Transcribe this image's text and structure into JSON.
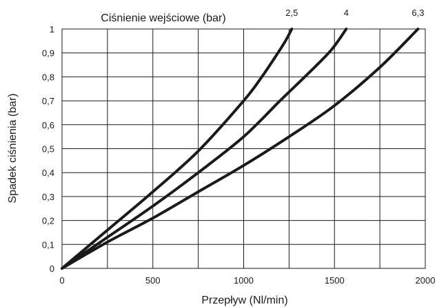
{
  "chart_data": {
    "type": "line",
    "title": "Ciśnienie wejściowe (bar)",
    "xlabel": "Przepływ (Nl/min)",
    "ylabel": "Spadek ciśnienia (bar)",
    "xlim": [
      0,
      2000
    ],
    "ylim": [
      0,
      1
    ],
    "xticks": [
      0,
      250,
      500,
      750,
      1000,
      1250,
      1500,
      1750,
      2000
    ],
    "yticks": [
      0,
      0.1,
      0.2,
      0.3,
      0.4,
      0.5,
      0.6,
      0.7,
      0.8,
      0.9,
      1
    ],
    "xtick_labels": [
      "0",
      "",
      "500",
      "",
      "1000",
      "",
      "1500",
      "",
      "2000"
    ],
    "ytick_labels": [
      "0",
      "0,1",
      "0,2",
      "0,3",
      "0,4",
      "0,5",
      "0,6",
      "0,7",
      "0,8",
      "0,9",
      "1"
    ],
    "grid": true,
    "series": [
      {
        "name": "2,5",
        "x": [
          0,
          250,
          500,
          750,
          1000,
          1100,
          1180,
          1230,
          1265
        ],
        "y": [
          0,
          0.16,
          0.32,
          0.49,
          0.7,
          0.8,
          0.89,
          0.95,
          1.0
        ]
      },
      {
        "name": "4",
        "x": [
          0,
          250,
          500,
          750,
          1000,
          1200,
          1350,
          1480,
          1565
        ],
        "y": [
          0,
          0.13,
          0.26,
          0.4,
          0.55,
          0.7,
          0.81,
          0.91,
          1.0
        ]
      },
      {
        "name": "6,3",
        "x": [
          0,
          250,
          500,
          750,
          1000,
          1250,
          1500,
          1750,
          1960
        ],
        "y": [
          0,
          0.11,
          0.21,
          0.32,
          0.43,
          0.55,
          0.68,
          0.84,
          1.0
        ]
      }
    ]
  }
}
